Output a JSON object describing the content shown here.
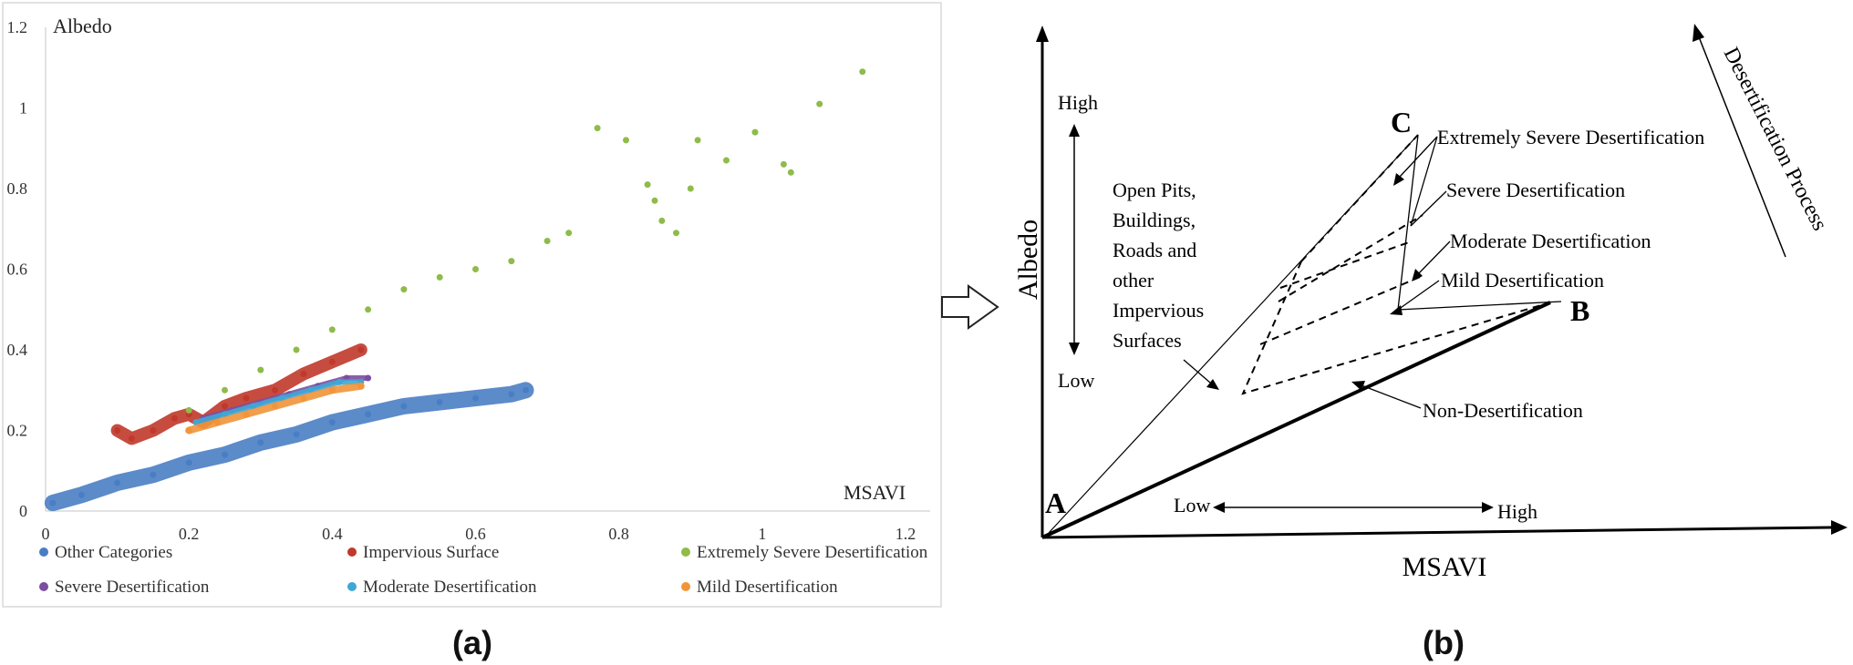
{
  "panels": {
    "a": {
      "label": "(a)"
    },
    "b": {
      "label": "(b)"
    }
  },
  "chart_data": {
    "type": "scatter",
    "ylabel": "Albedo",
    "xlabel": "MSAVI",
    "xlim": [
      0,
      1.2
    ],
    "ylim": [
      0,
      1.2
    ],
    "x_ticks": [
      "0",
      "0.2",
      "0.4",
      "0.6",
      "0.8",
      "1",
      "1.2"
    ],
    "y_ticks": [
      "0",
      "0.2",
      "0.4",
      "0.6",
      "0.8",
      "1",
      "1.2"
    ],
    "grid": false,
    "legend_position": "bottom",
    "series": [
      {
        "name": "Other Categories",
        "color": "#4a7ec4",
        "points": [
          [
            0.01,
            0.02
          ],
          [
            0.05,
            0.04
          ],
          [
            0.1,
            0.07
          ],
          [
            0.15,
            0.09
          ],
          [
            0.2,
            0.12
          ],
          [
            0.25,
            0.14
          ],
          [
            0.3,
            0.17
          ],
          [
            0.35,
            0.19
          ],
          [
            0.4,
            0.22
          ],
          [
            0.45,
            0.24
          ],
          [
            0.5,
            0.26
          ],
          [
            0.55,
            0.27
          ],
          [
            0.6,
            0.28
          ],
          [
            0.65,
            0.29
          ],
          [
            0.67,
            0.3
          ]
        ]
      },
      {
        "name": "Impervious Surface",
        "color": "#c0392b",
        "points": [
          [
            0.1,
            0.2
          ],
          [
            0.12,
            0.18
          ],
          [
            0.15,
            0.2
          ],
          [
            0.18,
            0.23
          ],
          [
            0.2,
            0.24
          ],
          [
            0.22,
            0.22
          ],
          [
            0.25,
            0.26
          ],
          [
            0.28,
            0.28
          ],
          [
            0.32,
            0.3
          ],
          [
            0.36,
            0.34
          ],
          [
            0.4,
            0.37
          ],
          [
            0.44,
            0.4
          ]
        ]
      },
      {
        "name": "Extremely Severe Desertification",
        "color": "#8fbb4a",
        "points": [
          [
            0.2,
            0.25
          ],
          [
            0.25,
            0.3
          ],
          [
            0.3,
            0.35
          ],
          [
            0.35,
            0.4
          ],
          [
            0.4,
            0.45
          ],
          [
            0.45,
            0.5
          ],
          [
            0.5,
            0.55
          ],
          [
            0.55,
            0.58
          ],
          [
            0.6,
            0.6
          ],
          [
            0.65,
            0.62
          ],
          [
            0.7,
            0.67
          ],
          [
            0.73,
            0.69
          ],
          [
            0.77,
            0.95
          ],
          [
            0.81,
            0.92
          ],
          [
            0.84,
            0.81
          ],
          [
            0.85,
            0.77
          ],
          [
            0.86,
            0.72
          ],
          [
            0.88,
            0.69
          ],
          [
            0.9,
            0.8
          ],
          [
            0.91,
            0.92
          ],
          [
            0.95,
            0.87
          ],
          [
            0.99,
            0.94
          ],
          [
            1.03,
            0.86
          ],
          [
            1.04,
            0.84
          ],
          [
            1.08,
            1.01
          ],
          [
            1.14,
            1.09
          ]
        ]
      },
      {
        "name": "Severe Desertification",
        "color": "#7a4fa0",
        "points": [
          [
            0.22,
            0.23
          ],
          [
            0.26,
            0.25
          ],
          [
            0.3,
            0.27
          ],
          [
            0.34,
            0.29
          ],
          [
            0.38,
            0.31
          ],
          [
            0.42,
            0.33
          ],
          [
            0.45,
            0.33
          ]
        ]
      },
      {
        "name": "Moderate Desertification",
        "color": "#3fa7d6",
        "points": [
          [
            0.21,
            0.22
          ],
          [
            0.25,
            0.24
          ],
          [
            0.29,
            0.26
          ],
          [
            0.33,
            0.28
          ],
          [
            0.37,
            0.3
          ],
          [
            0.41,
            0.32
          ],
          [
            0.44,
            0.32
          ]
        ]
      },
      {
        "name": "Mild Desertification",
        "color": "#f0953a",
        "points": [
          [
            0.2,
            0.2
          ],
          [
            0.24,
            0.22
          ],
          [
            0.28,
            0.24
          ],
          [
            0.32,
            0.26
          ],
          [
            0.36,
            0.28
          ],
          [
            0.4,
            0.3
          ],
          [
            0.44,
            0.31
          ]
        ]
      }
    ]
  },
  "diagram": {
    "ylabel": "Albedo",
    "xlabel": "MSAVI",
    "y_high": "High",
    "y_low": "Low",
    "x_low": "Low",
    "x_high": "High",
    "point_a": "A",
    "point_b": "B",
    "point_c": "C",
    "impervious_lines": [
      "Open Pits,",
      "Buildings,",
      "Roads and",
      "other",
      "Impervious",
      "Surfaces"
    ],
    "zones": {
      "extremely_severe": "Extremely Severe Desertification",
      "severe": "Severe Desertification",
      "moderate": "Moderate Desertification",
      "mild": "Mild Desertification",
      "non": "Non-Desertification"
    },
    "process": "Desertification Process"
  }
}
